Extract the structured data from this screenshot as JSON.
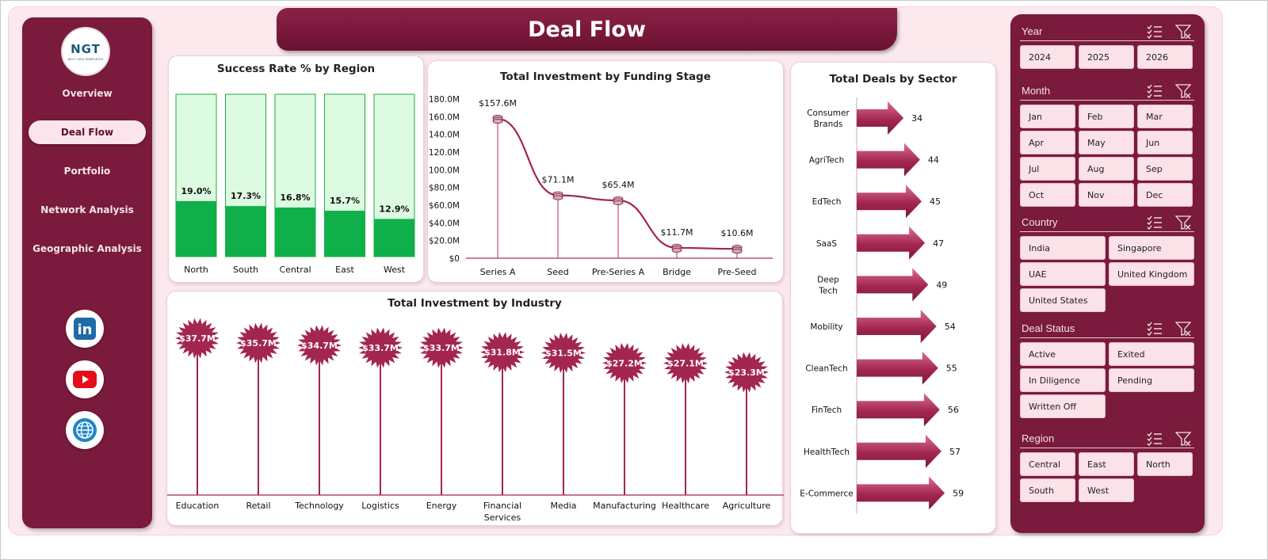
{
  "title": "Deal Flow",
  "logo": {
    "text": "NGT",
    "subtext": "NEXT GEN TEMPLATES"
  },
  "nav": [
    {
      "label": "Overview",
      "active": false
    },
    {
      "label": "Deal Flow",
      "active": true
    },
    {
      "label": "Portfolio",
      "active": false
    },
    {
      "label": "Network Analysis",
      "active": false
    },
    {
      "label": "Geographic Analysis",
      "active": false
    }
  ],
  "social": [
    {
      "icon": "linkedin-icon",
      "label": "in"
    },
    {
      "icon": "youtube-icon"
    },
    {
      "icon": "globe-icon"
    }
  ],
  "colors": {
    "brand": "#7a1a3c",
    "accent": "#a3264f",
    "success_fill": "#0fb049",
    "success_bg": "#dcfbe0"
  },
  "chart_data": [
    {
      "type": "bar",
      "title": "Success Rate % by Region",
      "categories": [
        "North",
        "South",
        "Central",
        "East",
        "West"
      ],
      "values": [
        19.0,
        17.3,
        16.8,
        15.7,
        12.9
      ],
      "labels": [
        "19.0%",
        "17.3%",
        "16.8%",
        "15.7%",
        "12.9%"
      ],
      "ylim": [
        0,
        100
      ],
      "stacked_background": true
    },
    {
      "type": "line",
      "title": "Total Investment by Funding Stage",
      "categories": [
        "Series A",
        "Seed",
        "Pre-Series A",
        "Bridge",
        "Pre-Seed"
      ],
      "values": [
        157.6,
        71.1,
        65.4,
        11.7,
        10.6
      ],
      "labels": [
        "$157.6M",
        "$71.1M",
        "$65.4M",
        "$11.7M",
        "$10.6M"
      ],
      "yticks": [
        "$0",
        "$20.0M",
        "$40.0M",
        "$60.0M",
        "$80.0M",
        "$100.0M",
        "$120.0M",
        "$140.0M",
        "$160.0M",
        "$180.0M"
      ],
      "ylim": [
        0,
        180
      ]
    },
    {
      "type": "bar",
      "title": "Total Investment by Industry",
      "categories": [
        "Education",
        "Retail",
        "Technology",
        "Logistics",
        "Energy",
        "Financial Services",
        "Media",
        "Manufacturing",
        "Healthcare",
        "Agriculture"
      ],
      "values": [
        37.7,
        35.7,
        34.7,
        33.7,
        33.7,
        31.8,
        31.5,
        27.2,
        27.1,
        23.3
      ],
      "labels": [
        "$37.7M",
        "$35.7M",
        "$34.7M",
        "$33.7M",
        "$33.7M",
        "$31.8M",
        "$31.5M",
        "$27.2M",
        "$27.1M",
        "$23.3M"
      ],
      "style": "lollipop-starburst"
    },
    {
      "type": "bar",
      "orientation": "horizontal",
      "title": "Total Deals by Sector",
      "categories": [
        "Consumer Brands",
        "AgriTech",
        "EdTech",
        "SaaS",
        "Deep Tech",
        "Mobility",
        "CleanTech",
        "FinTech",
        "HealthTech",
        "E-Commerce"
      ],
      "values": [
        34,
        44,
        45,
        47,
        49,
        54,
        55,
        56,
        57,
        59
      ],
      "style": "arrow"
    }
  ],
  "slicers": [
    {
      "name": "Year",
      "items": [
        "2024",
        "2025",
        "2026"
      ]
    },
    {
      "name": "Month",
      "items": [
        "Jan",
        "Feb",
        "Mar",
        "Apr",
        "May",
        "Jun",
        "Jul",
        "Aug",
        "Sep",
        "Oct",
        "Nov",
        "Dec"
      ]
    },
    {
      "name": "Country",
      "items": [
        "India",
        "Singapore",
        "UAE",
        "United Kingdom",
        "United States"
      ]
    },
    {
      "name": "Deal Status",
      "items": [
        "Active",
        "Exited",
        "In Diligence",
        "Pending",
        "Written Off"
      ]
    },
    {
      "name": "Region",
      "items": [
        "Central",
        "East",
        "North",
        "South",
        "West"
      ]
    }
  ]
}
